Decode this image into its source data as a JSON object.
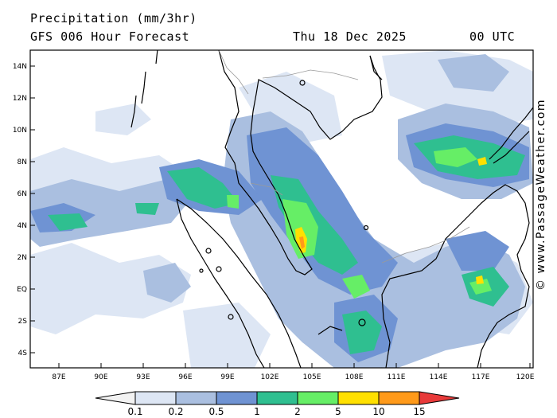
{
  "header": {
    "title": "Precipitation (mm/3hr)",
    "subtitle": "GFS 006 Hour Forecast",
    "datetime": "Thu 18 Dec 2025",
    "time": "00 UTC"
  },
  "credit": "© www.PassageWeather.com",
  "axes": {
    "lat_labels": [
      "14N",
      "12N",
      "10N",
      "8N",
      "6N",
      "4N",
      "2N",
      "EQ",
      "2S",
      "4S"
    ],
    "lon_labels": [
      "87E",
      "90E",
      "93E",
      "96E",
      "99E",
      "102E",
      "105E",
      "108E",
      "111E",
      "114E",
      "117E",
      "120E"
    ]
  },
  "legend": {
    "labels": [
      "0.1",
      "0.2",
      "0.5",
      "1",
      "2",
      "5",
      "10",
      "15"
    ],
    "colors": [
      "#f2f2f2",
      "#dde6f4",
      "#aabfe0",
      "#6f93d3",
      "#2fbf90",
      "#66ee66",
      "#ffe000",
      "#ff9a1a",
      "#e83a3a"
    ]
  },
  "palette": {
    "land_outline": "#000000",
    "border": "#9a9a9a"
  }
}
